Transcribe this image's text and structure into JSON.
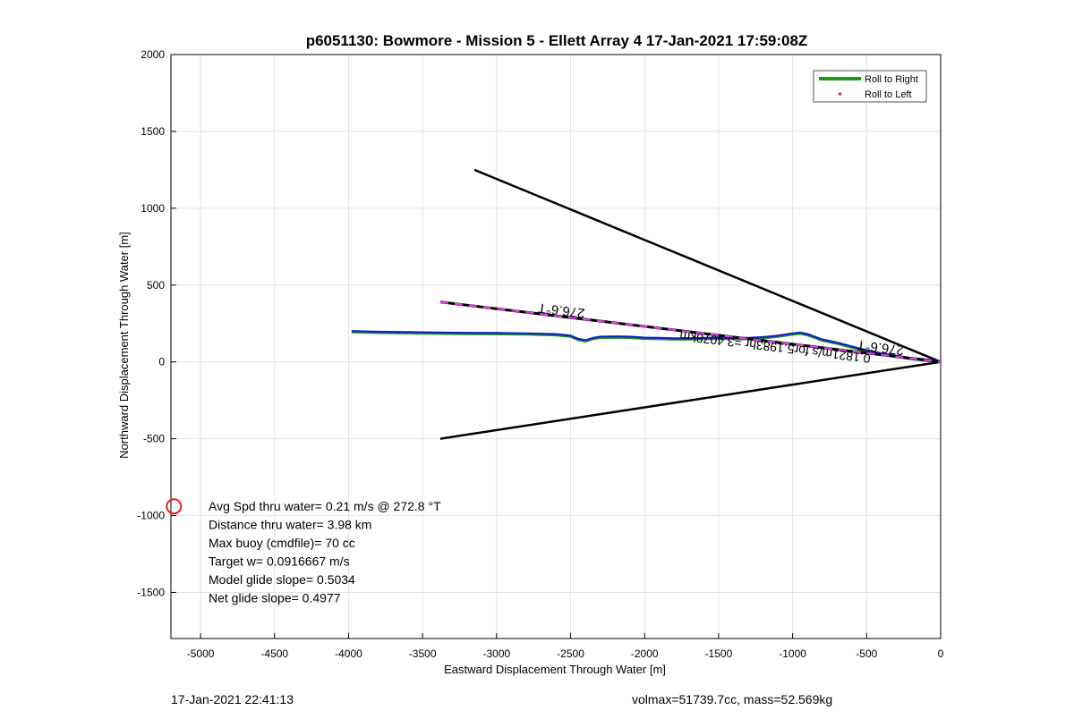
{
  "chart_data": {
    "type": "line",
    "title": "p6051130: Bowmore - Mission 5 - Ellett Array 4 17-Jan-2021 17:59:08Z",
    "xlabel": "Eastward Displacement Through Water [m]",
    "ylabel": "Northward Displacement Through Water [m]",
    "xlim": [
      -5200,
      0
    ],
    "ylim": [
      -1800,
      2000
    ],
    "xticks": [
      -5000,
      -4500,
      -4000,
      -3500,
      -3000,
      -2500,
      -2000,
      -1500,
      -1000,
      -500,
      0
    ],
    "yticks": [
      -1500,
      -1000,
      -500,
      0,
      500,
      1000,
      1500,
      2000
    ],
    "grid": true,
    "legend_position": "top-right",
    "legend": [
      {
        "label": "Roll to Right",
        "style": "line",
        "color": "#1a9a1a"
      },
      {
        "label": "Roll to Left",
        "style": "dot",
        "color": "#e02020"
      }
    ],
    "track_color": "#1020c0",
    "track": {
      "x": [
        -3980,
        -3800,
        -3600,
        -3400,
        -3200,
        -3000,
        -2800,
        -2600,
        -2500,
        -2450,
        -2400,
        -2350,
        -2300,
        -2200,
        -2100,
        -2000,
        -1900,
        -1800,
        -1700,
        -1600,
        -1500,
        -1400,
        -1300,
        -1200,
        -1100,
        -1000,
        -950,
        -900,
        -800,
        -700,
        -600,
        -500,
        -400,
        -300,
        -200,
        -100,
        0
      ],
      "y": [
        195,
        190,
        188,
        185,
        183,
        182,
        180,
        175,
        165,
        145,
        135,
        150,
        158,
        160,
        158,
        152,
        150,
        147,
        148,
        150,
        152,
        150,
        150,
        155,
        165,
        180,
        185,
        175,
        140,
        120,
        95,
        70,
        50,
        35,
        20,
        10,
        0
      ]
    },
    "wedge": {
      "apex": [
        0,
        0
      ],
      "upper_end": [
        -3150,
        1250
      ],
      "lower_end": [
        -3380,
        -500
      ]
    },
    "heading_line": {
      "from": [
        -3380,
        390
      ],
      "to": [
        0,
        0
      ],
      "label_outer": "276.6°T",
      "label_inner": "276.6°T",
      "current_label": "0.1821m/s for5.1983hr =3.4078km"
    },
    "start_marker": {
      "x": -5180,
      "y": -940,
      "color": "#e02020"
    },
    "annotations": [
      "Avg Spd thru water=  0.21 m/s @ 272.8 °T",
      "Distance thru water=  3.98 km",
      "Max buoy (cmdfile)= 70 cc",
      "Target w= 0.0916667 m/s",
      "Model glide slope= 0.5034",
      "Net glide slope= 0.4977"
    ]
  },
  "footer": {
    "left": "17-Jan-2021 22:41:13",
    "right": "volmax=51739.7cc, mass=52.569kg"
  }
}
